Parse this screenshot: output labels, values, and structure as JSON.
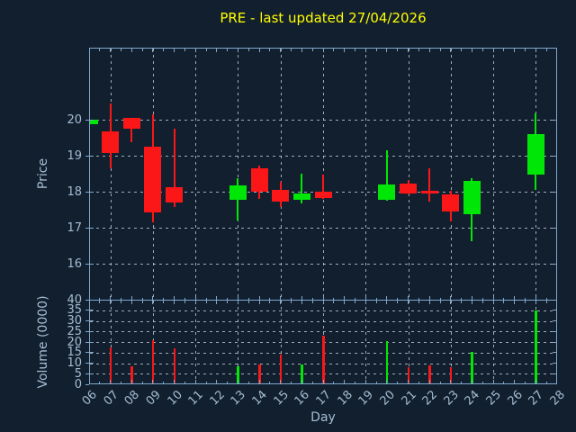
{
  "colors": {
    "background": "#121f2e",
    "axis_spine": "#7fa8cc",
    "grid": "#c6ced8",
    "tick_label": "#a4bdd3",
    "title": "#ffff00",
    "up": "#00e606",
    "down": "#fb1717"
  },
  "chart_data": {
    "type": "candlestick",
    "title": "PRE - last updated 27/04/2026",
    "xlabel": "Day",
    "ylabel_price": "Price",
    "ylabel_volume": "Volume (0000)",
    "x_ticks": [
      "06",
      "07",
      "08",
      "09",
      "10",
      "11",
      "12",
      "13",
      "14",
      "15",
      "16",
      "17",
      "18",
      "19",
      "20",
      "21",
      "22",
      "23",
      "24",
      "25",
      "26",
      "27",
      "28"
    ],
    "x_range_days": [
      6,
      28
    ],
    "price_ylim": [
      15,
      22
    ],
    "price_yticks": [
      16,
      17,
      18,
      19,
      20
    ],
    "volume_ylim": [
      0,
      40
    ],
    "volume_yticks": [
      0,
      5,
      10,
      15,
      20,
      25,
      30,
      35,
      40
    ],
    "grid_style": "dashed",
    "vertical_gridline_days": [
      7,
      9,
      11,
      13,
      15,
      17,
      19,
      21,
      23,
      25,
      27
    ],
    "legend": "none",
    "candles": [
      {
        "day": "06",
        "open": 19.88,
        "high": 20.0,
        "low": 19.86,
        "close": 20.0,
        "direction": "up"
      },
      {
        "day": "07",
        "open": 19.68,
        "high": 20.45,
        "low": 18.64,
        "close": 19.08,
        "direction": "down"
      },
      {
        "day": "08",
        "open": 20.05,
        "high": 20.05,
        "low": 19.37,
        "close": 19.76,
        "direction": "down"
      },
      {
        "day": "09",
        "open": 19.24,
        "high": 20.16,
        "low": 17.16,
        "close": 17.43,
        "direction": "down"
      },
      {
        "day": "10",
        "open": 18.12,
        "high": 19.74,
        "low": 17.58,
        "close": 17.7,
        "direction": "down"
      },
      {
        "day": "13",
        "open": 17.78,
        "high": 18.38,
        "low": 17.19,
        "close": 18.18,
        "direction": "up"
      },
      {
        "day": "14",
        "open": 18.64,
        "high": 18.72,
        "low": 17.8,
        "close": 18.0,
        "direction": "down"
      },
      {
        "day": "15",
        "open": 18.04,
        "high": 18.28,
        "low": 17.58,
        "close": 17.73,
        "direction": "down"
      },
      {
        "day": "16",
        "open": 17.78,
        "high": 18.51,
        "low": 17.68,
        "close": 17.94,
        "direction": "up"
      },
      {
        "day": "17",
        "open": 18.0,
        "high": 18.48,
        "low": 17.8,
        "close": 17.82,
        "direction": "down"
      },
      {
        "day": "20",
        "open": 17.78,
        "high": 19.16,
        "low": 17.76,
        "close": 18.2,
        "direction": "up"
      },
      {
        "day": "21",
        "open": 18.22,
        "high": 18.33,
        "low": 17.93,
        "close": 17.95,
        "direction": "down"
      },
      {
        "day": "22",
        "open": 18.03,
        "high": 18.66,
        "low": 17.73,
        "close": 17.96,
        "direction": "down"
      },
      {
        "day": "23",
        "open": 17.93,
        "high": 18.02,
        "low": 17.18,
        "close": 17.44,
        "direction": "down"
      },
      {
        "day": "24",
        "open": 17.37,
        "high": 18.37,
        "low": 16.63,
        "close": 18.3,
        "direction": "up"
      },
      {
        "day": "27",
        "open": 18.47,
        "high": 20.18,
        "low": 18.06,
        "close": 19.61,
        "direction": "up"
      }
    ],
    "volumes": [
      {
        "day": "07",
        "value": 17.5,
        "direction": "down"
      },
      {
        "day": "08",
        "value": 8.5,
        "direction": "down"
      },
      {
        "day": "09",
        "value": 21,
        "direction": "down"
      },
      {
        "day": "10",
        "value": 17,
        "direction": "down"
      },
      {
        "day": "13",
        "value": 8.5,
        "direction": "up"
      },
      {
        "day": "14",
        "value": 9.5,
        "direction": "down"
      },
      {
        "day": "15",
        "value": 14,
        "direction": "down"
      },
      {
        "day": "16",
        "value": 9.5,
        "direction": "up"
      },
      {
        "day": "17",
        "value": 23,
        "direction": "down"
      },
      {
        "day": "20",
        "value": 20.5,
        "direction": "up"
      },
      {
        "day": "21",
        "value": 8,
        "direction": "down"
      },
      {
        "day": "22",
        "value": 9,
        "direction": "down"
      },
      {
        "day": "23",
        "value": 8,
        "direction": "down"
      },
      {
        "day": "24",
        "value": 15.5,
        "direction": "up"
      },
      {
        "day": "27",
        "value": 35,
        "direction": "up"
      }
    ]
  }
}
